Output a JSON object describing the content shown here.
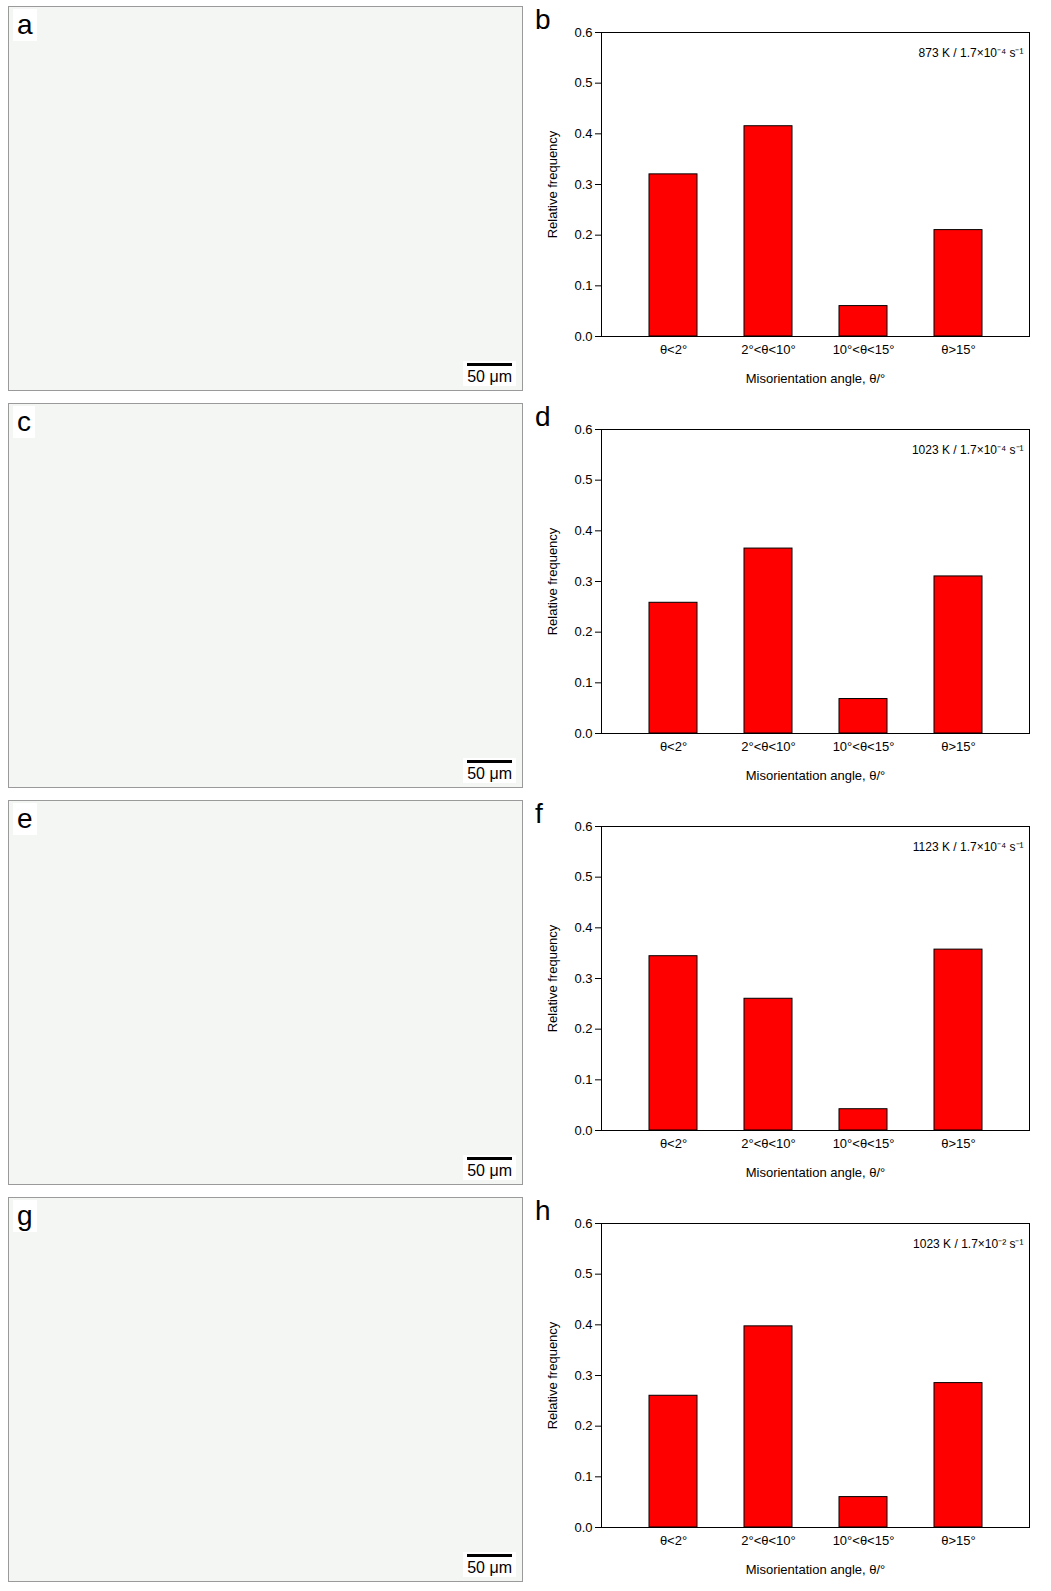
{
  "chart_data": [
    {
      "type": "bar",
      "panel": "b",
      "annotation": "873 K / 1.7×10⁻⁴ s⁻¹",
      "categories": [
        "θ<2°",
        "2°<θ<10°",
        "10°<θ<15°",
        "θ>15°"
      ],
      "values": [
        0.32,
        0.415,
        0.06,
        0.21
      ],
      "color": "#ff0000",
      "x_label": "Misorientation angle, θ/°",
      "y_label": "Relative frequency",
      "ylim": [
        0,
        0.6
      ],
      "yticks": [
        {
          "value": 0,
          "label": "0.0"
        },
        0.1,
        0.2,
        0.3,
        0.4,
        0.5,
        0.6
      ],
      "grid": false
    },
    {
      "type": "bar",
      "panel": "d",
      "annotation": "1023 K / 1.7×10⁻⁴ s⁻¹",
      "categories": [
        "θ<2°",
        "2°<θ<10°",
        "10°<θ<15°",
        "θ>15°"
      ],
      "values": [
        0.258,
        0.365,
        0.068,
        0.31
      ],
      "color": "#ff0000",
      "x_label": "Misorientation angle, θ/°",
      "y_label": "Relative frequency",
      "ylim": [
        0,
        0.6
      ],
      "yticks": [
        {
          "value": 0,
          "label": "0.0"
        },
        0.1,
        0.2,
        0.3,
        0.4,
        0.5,
        0.6
      ],
      "grid": false
    },
    {
      "type": "bar",
      "panel": "f",
      "annotation": "1123 K / 1.7×10⁻⁴ s⁻¹",
      "categories": [
        "θ<2°",
        "2°<θ<10°",
        "10°<θ<15°",
        "θ>15°"
      ],
      "values": [
        0.344,
        0.26,
        0.042,
        0.357
      ],
      "color": "#ff0000",
      "x_label": "Misorientation angle, θ/°",
      "y_label": "Relative frequency",
      "ylim": [
        0,
        0.6
      ],
      "yticks": [
        {
          "value": 0,
          "label": "0.0"
        },
        0.1,
        0.2,
        0.3,
        0.4,
        0.5,
        0.6
      ],
      "grid": false
    },
    {
      "type": "bar",
      "panel": "h",
      "annotation": "1023 K / 1.7×10⁻² s⁻¹",
      "categories": [
        "θ<2°",
        "2°<θ<10°",
        "10°<θ<15°",
        "θ>15°"
      ],
      "values": [
        0.26,
        0.397,
        0.06,
        0.285
      ],
      "color": "#ff0000",
      "x_label": "Misorientation angle, θ/°",
      "y_label": "Relative frequency",
      "ylim": [
        0,
        0.6
      ],
      "yticks": [
        {
          "value": 0,
          "label": "0.0"
        },
        0.1,
        0.2,
        0.3,
        0.4,
        0.5,
        0.6
      ],
      "grid": false
    }
  ],
  "micrographs": [
    {
      "panel": "a",
      "scale_bar": "50 μm"
    },
    {
      "panel": "c",
      "scale_bar": "50 μm"
    },
    {
      "panel": "e",
      "scale_bar": "50 μm"
    },
    {
      "panel": "g",
      "scale_bar": "50 μm"
    }
  ]
}
